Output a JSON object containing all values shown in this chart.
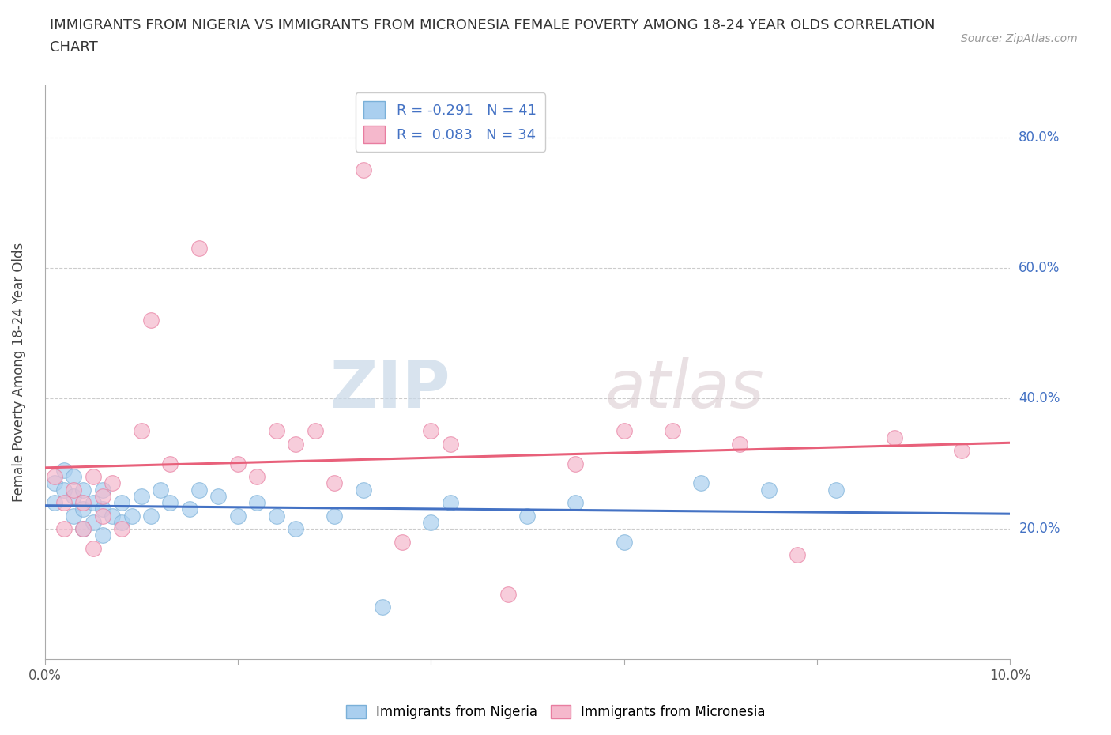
{
  "title_line1": "IMMIGRANTS FROM NIGERIA VS IMMIGRANTS FROM MICRONESIA FEMALE POVERTY AMONG 18-24 YEAR OLDS CORRELATION",
  "title_line2": "CHART",
  "source": "Source: ZipAtlas.com",
  "ylabel": "Female Poverty Among 18-24 Year Olds",
  "xlim": [
    0.0,
    0.1
  ],
  "ylim": [
    0.0,
    0.88
  ],
  "xticks": [
    0.0,
    0.02,
    0.04,
    0.06,
    0.08,
    0.1
  ],
  "xtick_labels": [
    "0.0%",
    "",
    "",
    "",
    "",
    "10.0%"
  ],
  "ytick_vals": [
    0.2,
    0.4,
    0.6,
    0.8
  ],
  "ytick_labels": [
    "20.0%",
    "40.0%",
    "60.0%",
    "80.0%"
  ],
  "nigeria_color": "#aacfef",
  "nigeria_edge": "#7ab0d8",
  "micronesia_color": "#f5b8cc",
  "micronesia_edge": "#e87da0",
  "nigeria_line_color": "#4472c4",
  "micronesia_line_color": "#e8607a",
  "legend_nigeria_label": "R = -0.291   N = 41",
  "legend_micronesia_label": "R =  0.083   N = 34",
  "watermark_zip": "ZIP",
  "watermark_atlas": "atlas",
  "grid_color": "#cccccc",
  "grid_style": "--",
  "nigeria_x": [
    0.001,
    0.001,
    0.002,
    0.002,
    0.003,
    0.003,
    0.003,
    0.004,
    0.004,
    0.004,
    0.005,
    0.005,
    0.006,
    0.006,
    0.006,
    0.007,
    0.008,
    0.008,
    0.009,
    0.01,
    0.011,
    0.012,
    0.013,
    0.015,
    0.016,
    0.018,
    0.02,
    0.022,
    0.024,
    0.026,
    0.03,
    0.033,
    0.035,
    0.04,
    0.042,
    0.05,
    0.055,
    0.06,
    0.068,
    0.075,
    0.082
  ],
  "nigeria_y": [
    0.27,
    0.24,
    0.29,
    0.26,
    0.28,
    0.25,
    0.22,
    0.26,
    0.23,
    0.2,
    0.24,
    0.21,
    0.26,
    0.23,
    0.19,
    0.22,
    0.24,
    0.21,
    0.22,
    0.25,
    0.22,
    0.26,
    0.24,
    0.23,
    0.26,
    0.25,
    0.22,
    0.24,
    0.22,
    0.2,
    0.22,
    0.26,
    0.08,
    0.21,
    0.24,
    0.22,
    0.24,
    0.18,
    0.27,
    0.26,
    0.26
  ],
  "micronesia_x": [
    0.001,
    0.002,
    0.002,
    0.003,
    0.004,
    0.004,
    0.005,
    0.005,
    0.006,
    0.006,
    0.007,
    0.008,
    0.01,
    0.011,
    0.013,
    0.016,
    0.02,
    0.022,
    0.024,
    0.026,
    0.028,
    0.03,
    0.033,
    0.037,
    0.04,
    0.042,
    0.048,
    0.055,
    0.06,
    0.065,
    0.072,
    0.078,
    0.088,
    0.095
  ],
  "micronesia_y": [
    0.28,
    0.24,
    0.2,
    0.26,
    0.24,
    0.2,
    0.28,
    0.17,
    0.25,
    0.22,
    0.27,
    0.2,
    0.35,
    0.52,
    0.3,
    0.63,
    0.3,
    0.28,
    0.35,
    0.33,
    0.35,
    0.27,
    0.75,
    0.18,
    0.35,
    0.33,
    0.1,
    0.3,
    0.35,
    0.35,
    0.33,
    0.16,
    0.34,
    0.32
  ]
}
